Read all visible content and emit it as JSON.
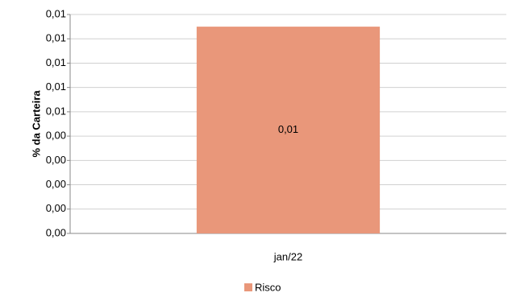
{
  "chart_data": {
    "type": "bar",
    "y_label": "% da Carteira",
    "categories": [
      "jan/22"
    ],
    "series": [
      {
        "name": "Risco",
        "color": "#e9977a",
        "values": [
          0.0085
        ],
        "value_labels": [
          "0,01"
        ]
      }
    ],
    "ylim": [
      0,
      0.009
    ],
    "yticks": [
      {
        "value": 0,
        "label": "0,00"
      },
      {
        "value": 0.001,
        "label": "0,00"
      },
      {
        "value": 0.002,
        "label": "0,00"
      },
      {
        "value": 0.003,
        "label": "0,00"
      },
      {
        "value": 0.004,
        "label": "0,00"
      },
      {
        "value": 0.005,
        "label": "0,01"
      },
      {
        "value": 0.006,
        "label": "0,01"
      },
      {
        "value": 0.007,
        "label": "0,01"
      },
      {
        "value": 0.008,
        "label": "0,01"
      },
      {
        "value": 0.009,
        "label": "0,01"
      }
    ],
    "grid": true,
    "legend": "bottom"
  }
}
